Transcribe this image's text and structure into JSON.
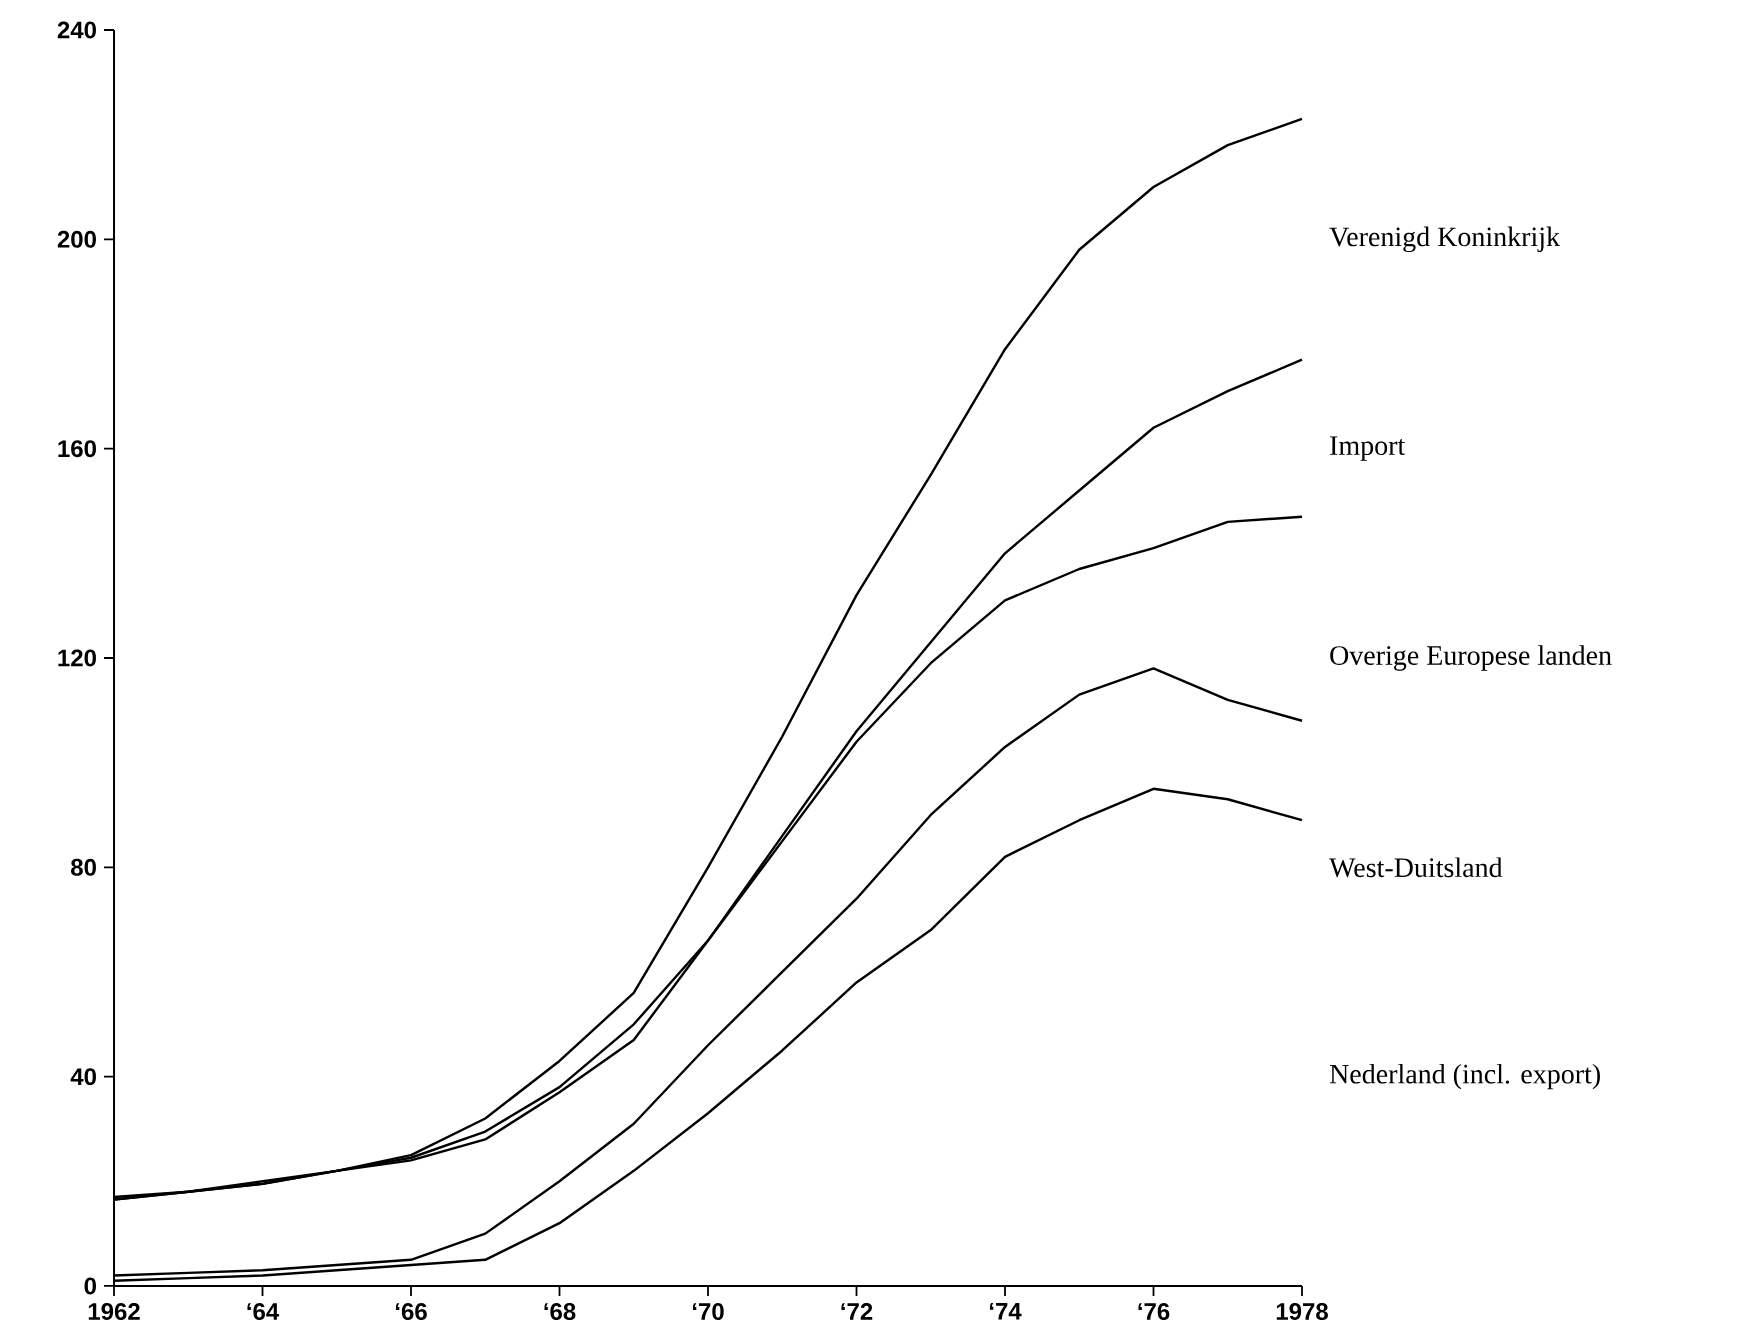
{
  "chart_data": {
    "type": "line",
    "x": [
      "1962",
      "1963",
      "1964",
      "1965",
      "1966",
      "1967",
      "1968",
      "1969",
      "1970",
      "1971",
      "1972",
      "1973",
      "1974",
      "1975",
      "1976",
      "1977",
      "1978"
    ],
    "series": [
      {
        "name": "Verenigd Koninkrijk",
        "color": "#000000",
        "values": [
          17,
          18,
          20,
          22,
          25,
          32,
          43,
          56,
          80,
          105,
          132,
          155,
          179,
          198,
          210,
          218,
          223
        ]
      },
      {
        "name": "Import",
        "color": "#000000",
        "values": [
          16.5,
          18,
          19.5,
          22,
          24.5,
          29.5,
          38,
          50,
          66,
          86,
          106,
          123,
          140,
          152,
          164,
          171,
          177
        ]
      },
      {
        "name": "Overige Europese landen",
        "color": "#000000",
        "values": [
          16.5,
          18,
          19.5,
          22,
          24,
          28,
          37,
          47,
          66,
          85,
          104,
          119,
          131,
          137,
          141,
          146,
          147
        ]
      },
      {
        "name": "West-Duitsland",
        "color": "#000000",
        "values": [
          2,
          2.5,
          3,
          4,
          5,
          10,
          20,
          31,
          46,
          60,
          74,
          90,
          103,
          113,
          118,
          112,
          108
        ]
      },
      {
        "name": "Nederland (incl. export)",
        "color": "#000000",
        "values": [
          1,
          1.5,
          2,
          3,
          4,
          5,
          12,
          22,
          33,
          45,
          58,
          68,
          82,
          89,
          95,
          93,
          89
        ]
      }
    ],
    "xlim": [
      "1962",
      "1978"
    ],
    "xticks": [
      "1962",
      {
        "value": "1964",
        "label": "‘64"
      },
      {
        "value": "1966",
        "label": "‘66"
      },
      {
        "value": "1968",
        "label": "‘68"
      },
      {
        "value": "1970",
        "label": "‘70"
      },
      {
        "value": "1972",
        "label": "‘72"
      },
      {
        "value": "1974",
        "label": "‘74"
      },
      {
        "value": "1976",
        "label": "‘76"
      },
      "1978"
    ],
    "ylim": [
      0,
      240
    ],
    "yticks": [
      0,
      40,
      80,
      120,
      160,
      200,
      240
    ],
    "grid": false,
    "legend": false,
    "marker": "none",
    "line_style": "solid"
  }
}
